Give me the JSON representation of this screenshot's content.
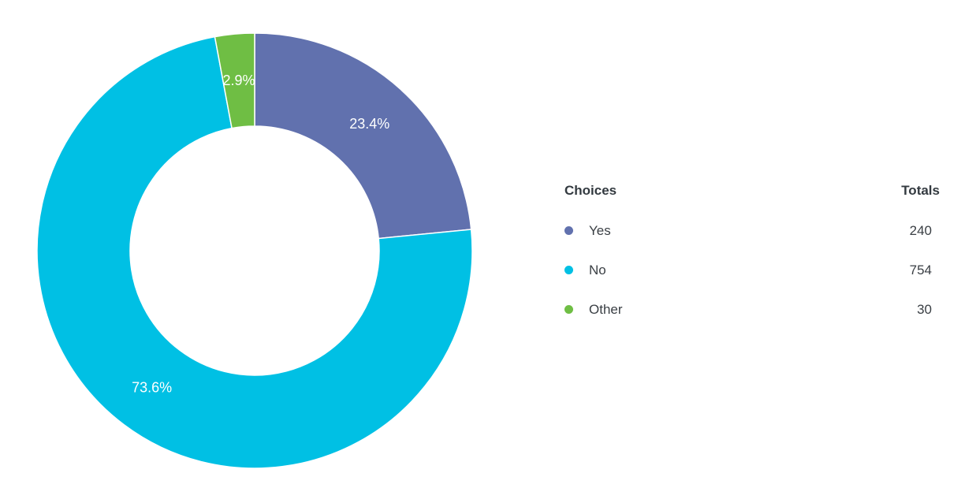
{
  "chart_data": {
    "type": "pie",
    "variant": "donut",
    "categories": [
      "Yes",
      "No",
      "Other"
    ],
    "values": [
      240,
      754,
      30
    ],
    "percent_labels": [
      "23.4%",
      "73.6%",
      "2.9%"
    ],
    "colors": [
      "#6171ae",
      "#00c0e4",
      "#6fbe44"
    ],
    "legend_placement": "right"
  },
  "legend": {
    "header_choices": "Choices",
    "header_totals": "Totals",
    "rows": [
      {
        "label": "Yes",
        "total": "240",
        "color": "#6171ae"
      },
      {
        "label": "No",
        "total": "754",
        "color": "#00c0e4"
      },
      {
        "label": "Other",
        "total": "30",
        "color": "#6fbe44"
      }
    ]
  }
}
